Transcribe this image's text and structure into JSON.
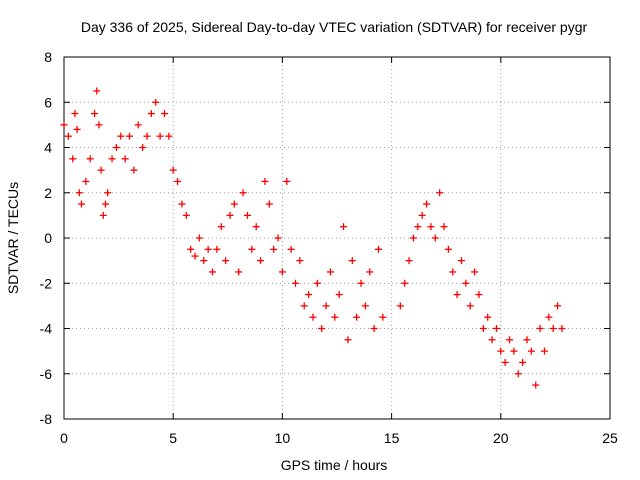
{
  "chart_data": {
    "type": "scatter",
    "title": "Day 336 of 2025, Sidereal Day-to-day VTEC variation (SDTVAR) for receiver pygr",
    "xlabel": "GPS time / hours",
    "ylabel": "SDTVAR / TECUs",
    "xlim": [
      0,
      25
    ],
    "ylim": [
      -8,
      8
    ],
    "x_ticks": [
      0,
      5,
      10,
      15,
      20,
      25
    ],
    "y_ticks": [
      -8,
      -6,
      -4,
      -2,
      0,
      2,
      4,
      6,
      8
    ],
    "x_tick_labels": [
      "0",
      "5",
      "10",
      "15",
      "20",
      "25"
    ],
    "y_tick_labels": [
      "-8",
      "-6",
      "-4",
      "-2",
      "0",
      "2",
      "4",
      "6",
      "8"
    ],
    "grid": true,
    "legend": "none",
    "marker": "+",
    "color": "#ff0000",
    "series": [
      {
        "name": "SDTVAR",
        "x": [
          0.0,
          0.2,
          0.4,
          0.5,
          0.6,
          0.7,
          0.8,
          1.0,
          1.2,
          1.4,
          1.5,
          1.6,
          1.7,
          1.8,
          1.9,
          2.0,
          2.2,
          2.4,
          2.6,
          2.8,
          3.0,
          3.2,
          3.4,
          3.6,
          3.8,
          4.0,
          4.2,
          4.4,
          4.6,
          4.8,
          5.0,
          5.2,
          5.4,
          5.6,
          5.8,
          6.0,
          6.2,
          6.4,
          6.6,
          6.8,
          7.0,
          7.2,
          7.4,
          7.6,
          7.8,
          8.0,
          8.2,
          8.4,
          8.6,
          8.8,
          9.0,
          9.2,
          9.4,
          9.6,
          9.8,
          10.0,
          10.2,
          10.4,
          10.6,
          10.8,
          11.0,
          11.2,
          11.4,
          11.6,
          11.8,
          12.0,
          12.2,
          12.4,
          12.6,
          12.8,
          13.0,
          13.2,
          13.4,
          13.6,
          13.8,
          14.0,
          14.2,
          14.4,
          14.6,
          15.4,
          15.6,
          15.8,
          16.0,
          16.2,
          16.4,
          16.6,
          16.8,
          17.0,
          17.2,
          17.4,
          17.6,
          17.8,
          18.0,
          18.2,
          18.4,
          18.6,
          18.8,
          19.0,
          19.2,
          19.4,
          19.6,
          19.8,
          20.0,
          20.2,
          20.4,
          20.6,
          20.8,
          21.0,
          21.2,
          21.4,
          21.6,
          21.8,
          22.0,
          22.2,
          22.4,
          22.6,
          22.8
        ],
        "y": [
          5.0,
          4.5,
          3.5,
          5.5,
          4.8,
          2.0,
          1.5,
          2.5,
          3.5,
          5.5,
          6.5,
          5.0,
          3.0,
          1.0,
          1.5,
          2.0,
          3.5,
          4.0,
          4.5,
          3.5,
          4.5,
          3.0,
          5.0,
          4.0,
          4.5,
          5.5,
          6.0,
          4.5,
          5.5,
          4.5,
          3.0,
          2.5,
          1.5,
          1.0,
          -0.5,
          -0.8,
          0.0,
          -1.0,
          -0.5,
          -1.5,
          -0.5,
          0.5,
          -1.0,
          1.0,
          1.5,
          -1.5,
          2.0,
          1.0,
          -0.5,
          0.5,
          -1.0,
          2.5,
          1.5,
          -0.5,
          0.0,
          -1.5,
          2.5,
          -0.5,
          -2.0,
          -1.0,
          -3.0,
          -2.5,
          -3.5,
          -2.0,
          -4.0,
          -3.0,
          -1.5,
          -3.5,
          -2.5,
          0.5,
          -4.5,
          -1.0,
          -3.5,
          -2.0,
          -3.0,
          -1.5,
          -4.0,
          -0.5,
          -3.5,
          -3.0,
          -2.0,
          -1.0,
          0.0,
          0.5,
          1.0,
          1.5,
          0.5,
          0.0,
          2.0,
          0.5,
          -0.5,
          -1.5,
          -2.5,
          -1.0,
          -2.0,
          -3.0,
          -1.5,
          -2.5,
          -4.0,
          -3.5,
          -4.5,
          -4.0,
          -5.0,
          -5.5,
          -4.5,
          -5.0,
          -6.0,
          -5.5,
          -4.5,
          -5.0,
          -6.5,
          -4.0,
          -5.0,
          -3.5,
          -4.0,
          -3.0,
          -4.0
        ]
      }
    ]
  }
}
